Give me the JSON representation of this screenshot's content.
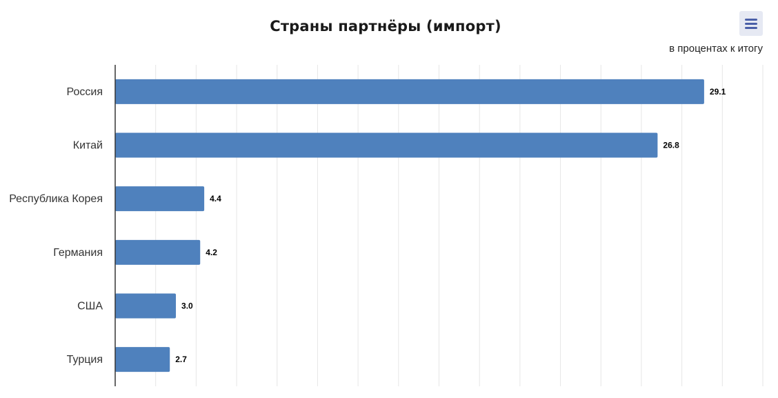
{
  "chart_data": {
    "type": "bar",
    "orientation": "horizontal",
    "title": "Страны партнёры (импорт)",
    "subtitle": "в процентах к итогу",
    "categories": [
      "Россия",
      "Китай",
      "Республика Корея",
      "Германия",
      "США",
      "Турция"
    ],
    "values": [
      29.1,
      26.8,
      4.4,
      4.2,
      3.0,
      2.7
    ],
    "data_labels": [
      "29.1",
      "26.8",
      "4.4",
      "4.2",
      "3.0",
      "2.7"
    ],
    "xlim": [
      0,
      32
    ],
    "grid": true,
    "legend": "none",
    "bar_color": "#4f81bd",
    "grid_color": "#e6e6e6",
    "axis_color": "#333333"
  },
  "toolbar": {
    "menu_icon": "hamburger-menu-icon"
  }
}
